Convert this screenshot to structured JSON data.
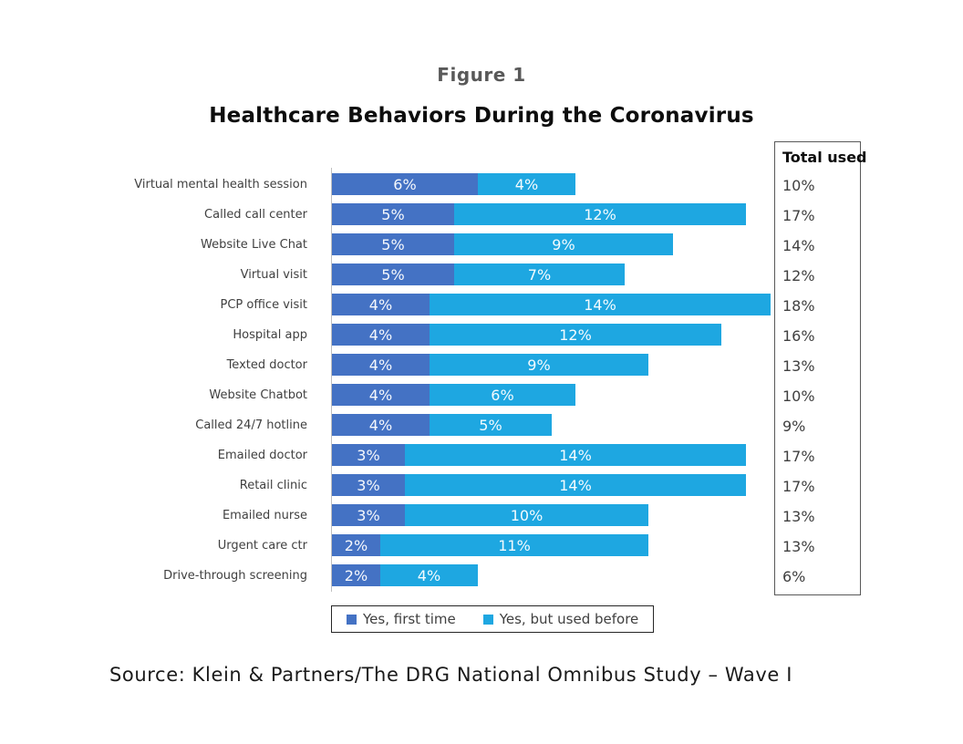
{
  "figure_label": "Figure 1",
  "title": "Healthcare Behaviors During the Coronavirus",
  "source": "Source: Klein & Partners/The DRG National Omnibus Study – Wave I",
  "totals_header": "Total used",
  "colors": {
    "first_time": "#4472C4",
    "used_before": "#1EA7E1",
    "figure_label_text": "#595959",
    "axis_line": "#BFBFBF"
  },
  "chart_data": {
    "type": "bar",
    "orientation": "horizontal",
    "stacked": true,
    "title": "Healthcare Behaviors During the Coronavirus",
    "xlabel": "",
    "ylabel": "",
    "xlim": [
      0,
      18
    ],
    "grid": false,
    "legend_position": "bottom",
    "value_label_suffix": "%",
    "categories": [
      "Virtual mental health session",
      "Called call center",
      "Website Live Chat",
      "Virtual visit",
      "PCP office visit",
      "Hospital app",
      "Texted doctor",
      "Website Chatbot",
      "Called 24/7 hotline",
      "Emailed doctor",
      "Retail clinic",
      "Emailed nurse",
      "Urgent care ctr",
      "Drive-through screening"
    ],
    "series": [
      {
        "name": "Yes, first time",
        "color": "#4472C4",
        "values": [
          6,
          5,
          5,
          5,
          4,
          4,
          4,
          4,
          4,
          3,
          3,
          3,
          2,
          2
        ]
      },
      {
        "name": "Yes, but used before",
        "color": "#1EA7E1",
        "values": [
          4,
          12,
          9,
          7,
          14,
          12,
          9,
          6,
          5,
          14,
          14,
          10,
          11,
          4
        ]
      }
    ],
    "totals": [
      "10%",
      "17%",
      "14%",
      "12%",
      "18%",
      "16%",
      "13%",
      "10%",
      "9%",
      "17%",
      "17%",
      "13%",
      "13%",
      "6%"
    ]
  }
}
